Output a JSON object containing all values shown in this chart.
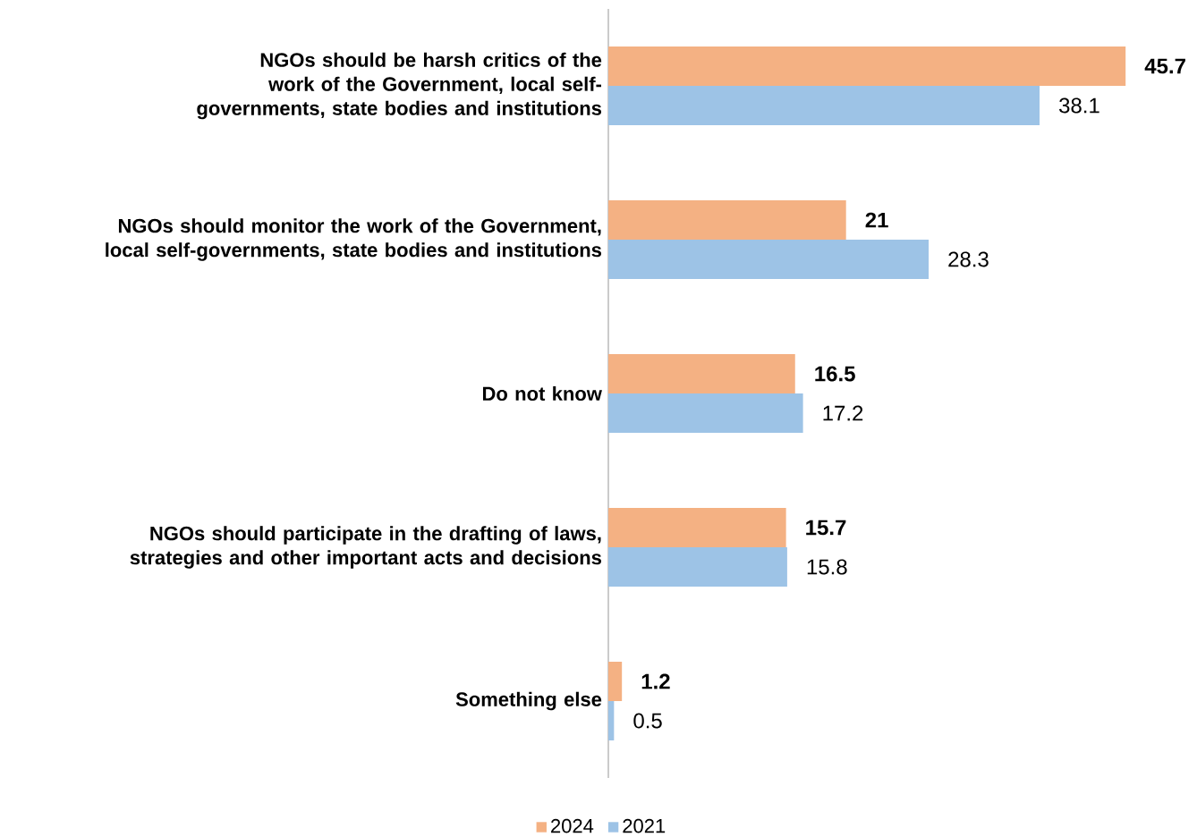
{
  "chart_data": {
    "type": "bar",
    "orientation": "horizontal",
    "data_labels": true,
    "legend": "bottom",
    "categories": [
      "NGOs should be harsh critics of the work of the Government, local self-governments, state bodies and institutions",
      "NGOs should monitor the work of the Government, local self-governments, state bodies and institutions",
      "Do not know",
      "NGOs should participate in the drafting of laws, strategies and other important acts and decisions",
      "Something else"
    ],
    "series": [
      {
        "name": "2024",
        "color": "#f4b183",
        "values": [
          45.7,
          21,
          16.5,
          15.7,
          1.2
        ]
      },
      {
        "name": "2021",
        "color": "#9dc3e6",
        "values": [
          38.1,
          28.3,
          17.2,
          15.8,
          0.5
        ]
      }
    ]
  }
}
